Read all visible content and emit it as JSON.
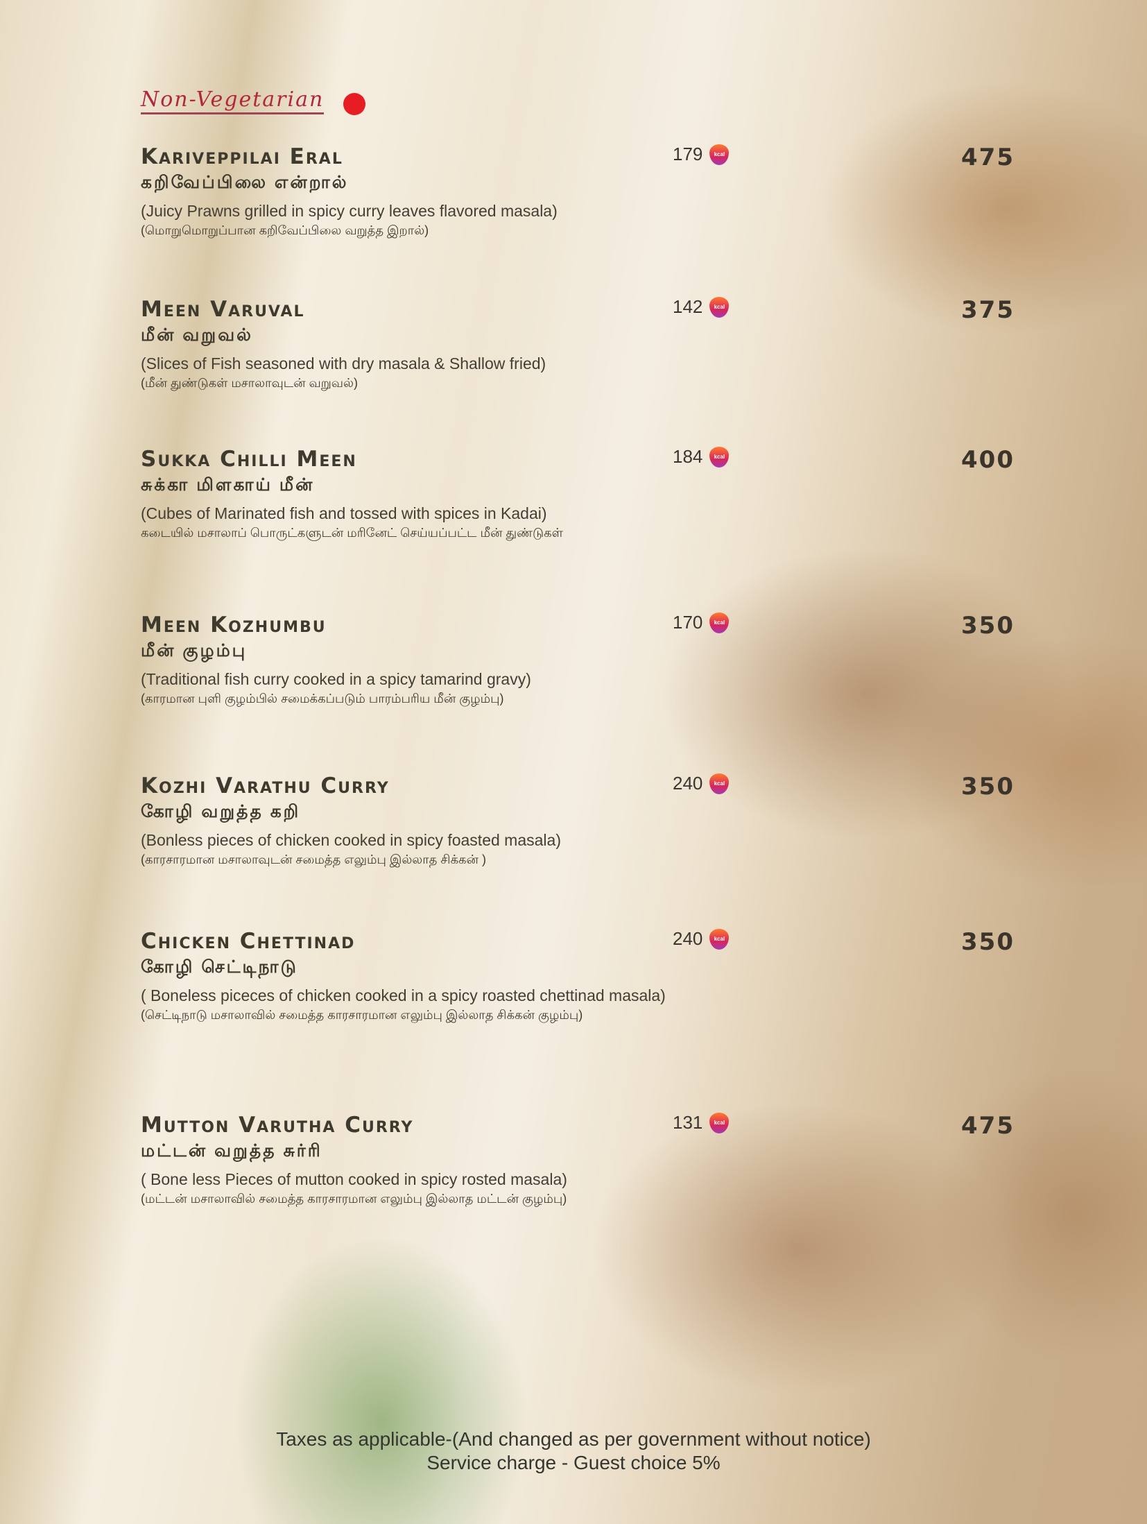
{
  "section": {
    "title": "Non-Vegetarian",
    "indicator_color": "#e61e24"
  },
  "kcal_icon": {
    "label": "kcal",
    "name": "kcal-flame-icon"
  },
  "items": [
    {
      "name": "Kariveppilai Eral",
      "tamil_name": "கறிவேப்பிலை என்றால்",
      "description": "(Juicy Prawns grilled in spicy curry leaves  flavored masala)",
      "tamil_description": "(மொறுமொறுப்பான கறிவேப்பிலை வறுத்த இறால்)",
      "kcal": "179",
      "price": "475"
    },
    {
      "name": "Meen Varuval",
      "tamil_name": "மீன் வறுவல்",
      "description": "(Slices of Fish seasoned with dry masala & Shallow fried)",
      "tamil_description": "(மீன் துண்டுகள் மசாலாவுடன் வறுவல்)",
      "kcal": "142",
      "price": "375"
    },
    {
      "name": "Sukka Chilli Meen",
      "tamil_name": "சுக்கா மிளகாய் மீன்",
      "description": "(Cubes of Marinated fish and tossed with spices in Kadai)",
      "tamil_description": "கடையில் மசாலாப் பொருட்களுடன் மரினேட் செய்யப்பட்ட மீன் துண்டுகள்",
      "kcal": "184",
      "price": "400"
    },
    {
      "name": "Meen Kozhumbu",
      "tamil_name": "மீன் குழம்பு",
      "description": "(Traditional fish curry cooked in a spicy tamarind gravy)",
      "tamil_description": "(காரமான புளி குழம்பில் சமைக்கப்படும் பாரம்பரிய மீன் குழம்பு)",
      "kcal": "170",
      "price": "350"
    },
    {
      "name": "Kozhi Varathu Curry",
      "tamil_name": "கோழி வறுத்த கறி",
      "description": "(Bonless pieces of chicken cooked in spicy foasted masala)",
      "tamil_description": "(காரசாரமான மசாலாவுடன் சமைத்த எலும்பு இல்லாத சிக்கன் )",
      "kcal": "240",
      "price": "350"
    },
    {
      "name": "Chicken Chettinad",
      "tamil_name": "கோழி செட்டிநாடு",
      "description": "( Boneless piceces of chicken cooked in a spicy roasted chettinad masala)",
      "tamil_description": "(செட்டிநாடு மசாலாவில் சமைத்த காரசாரமான எலும்பு இல்லாத   சிக்கன் குழம்பு)",
      "kcal": "240",
      "price": "350"
    },
    {
      "name": "Mutton Varutha Curry",
      "tamil_name": "மட்டன் வறுத்த சுர்ரி",
      "description": "( Bone less Pieces of mutton  cooked in spicy rosted masala)",
      "tamil_description": "(மட்டன் மசாலாவில் சமைத்த காரசாரமான எலும்பு இல்லாத மட்டன் குழம்பு)",
      "kcal": "131",
      "price": "475"
    }
  ],
  "footer": {
    "line1": "Taxes as applicable-(And changed as per government without notice)",
    "line2": "Service charge - Guest choice 5%"
  }
}
